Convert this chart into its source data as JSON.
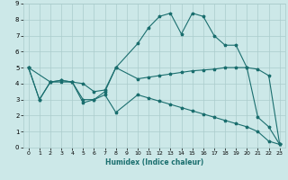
{
  "xlabel": "Humidex (Indice chaleur)",
  "bg_color": "#cce8e8",
  "line_color": "#1a6e6e",
  "grid_color": "#aacccc",
  "xlim": [
    -0.5,
    23.5
  ],
  "ylim": [
    0,
    9
  ],
  "xticks": [
    0,
    1,
    2,
    3,
    4,
    5,
    6,
    7,
    8,
    9,
    10,
    11,
    12,
    13,
    14,
    15,
    16,
    17,
    18,
    19,
    20,
    21,
    22,
    23
  ],
  "yticks": [
    0,
    1,
    2,
    3,
    4,
    5,
    6,
    7,
    8,
    9
  ],
  "line1_x": [
    0,
    1,
    2,
    3,
    4,
    5,
    6,
    7,
    8,
    10,
    11,
    12,
    13,
    14,
    15,
    16,
    17,
    18,
    19,
    20,
    21,
    22,
    23
  ],
  "line1_y": [
    5,
    3,
    4.1,
    4.1,
    4.1,
    4.0,
    3.5,
    3.6,
    5.0,
    6.5,
    7.5,
    8.2,
    8.4,
    7.1,
    8.4,
    8.2,
    7.0,
    6.4,
    6.4,
    5.0,
    1.9,
    1.3,
    0.2
  ],
  "line2_x": [
    0,
    2,
    3,
    4,
    5,
    6,
    7,
    8,
    10,
    11,
    12,
    13,
    14,
    15,
    16,
    17,
    18,
    19,
    20,
    21,
    22,
    23
  ],
  "line2_y": [
    5,
    4.1,
    4.2,
    4.1,
    3.0,
    3.0,
    3.5,
    5.0,
    4.3,
    4.4,
    4.5,
    4.6,
    4.7,
    4.8,
    4.85,
    4.9,
    5.0,
    5.0,
    5.0,
    4.9,
    4.5,
    0.2
  ],
  "line3_x": [
    0,
    1,
    2,
    3,
    4,
    5,
    6,
    7,
    8,
    10,
    11,
    12,
    13,
    14,
    15,
    16,
    17,
    18,
    19,
    20,
    21,
    22,
    23
  ],
  "line3_y": [
    5,
    3,
    4.1,
    4.2,
    4.1,
    2.8,
    3.0,
    3.3,
    2.2,
    3.3,
    3.1,
    2.9,
    2.7,
    2.5,
    2.3,
    2.1,
    1.9,
    1.7,
    1.5,
    1.3,
    1.0,
    0.4,
    0.2
  ]
}
